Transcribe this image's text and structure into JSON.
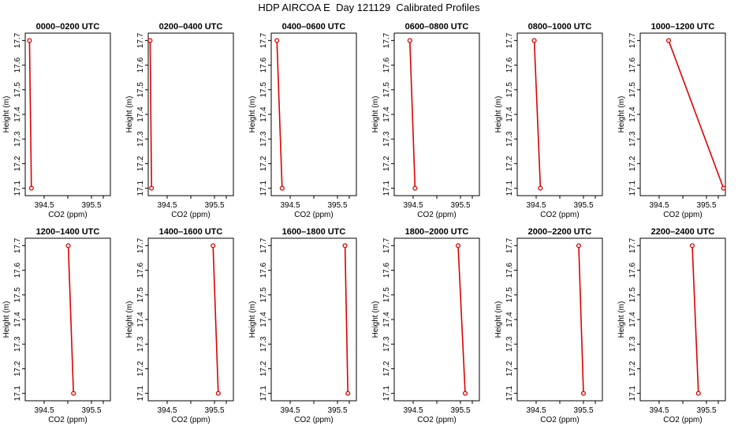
{
  "title": "HDP AIRCOA E  Day 121129  Calibrated Profiles",
  "colors": {
    "series": "#dd0000",
    "axis": "#000000",
    "background": "#ffffff"
  },
  "chart_data": [
    {
      "type": "line",
      "title": "0000–0200 UTC",
      "xlabel": "CO2 (ppm)",
      "ylabel": "Height (m)",
      "xlim": [
        394.1,
        395.9
      ],
      "ylim": [
        17.07,
        17.73
      ],
      "xticks": [
        "394.5",
        "395.5"
      ],
      "yticks": [
        "17.1",
        "17.2",
        "17.3",
        "17.4",
        "17.5",
        "17.6",
        "17.7"
      ],
      "grid": false,
      "points": [
        {
          "x": 394.19,
          "y": 17.7
        },
        {
          "x": 394.23,
          "y": 17.1
        }
      ]
    },
    {
      "type": "line",
      "title": "0200–0400 UTC",
      "xlabel": "CO2 (ppm)",
      "ylabel": "Height (m)",
      "xlim": [
        394.1,
        395.9
      ],
      "ylim": [
        17.07,
        17.73
      ],
      "xticks": [
        "394.5",
        "395.5"
      ],
      "yticks": [
        "17.1",
        "17.2",
        "17.3",
        "17.4",
        "17.5",
        "17.6",
        "17.7"
      ],
      "grid": false,
      "points": [
        {
          "x": 394.14,
          "y": 17.7
        },
        {
          "x": 394.17,
          "y": 17.1
        }
      ]
    },
    {
      "type": "line",
      "title": "0400–0600 UTC",
      "xlabel": "CO2 (ppm)",
      "ylabel": "Height (m)",
      "xlim": [
        394.1,
        395.9
      ],
      "ylim": [
        17.07,
        17.73
      ],
      "xticks": [
        "394.5",
        "395.5"
      ],
      "yticks": [
        "17.1",
        "17.2",
        "17.3",
        "17.4",
        "17.5",
        "17.6",
        "17.7"
      ],
      "grid": false,
      "points": [
        {
          "x": 394.22,
          "y": 17.7
        },
        {
          "x": 394.33,
          "y": 17.1
        }
      ]
    },
    {
      "type": "line",
      "title": "0600–0800 UTC",
      "xlabel": "CO2 (ppm)",
      "ylabel": "Height (m)",
      "xlim": [
        394.1,
        395.9
      ],
      "ylim": [
        17.07,
        17.73
      ],
      "xticks": [
        "394.5",
        "395.5"
      ],
      "yticks": [
        "17.1",
        "17.2",
        "17.3",
        "17.4",
        "17.5",
        "17.6",
        "17.7"
      ],
      "grid": false,
      "points": [
        {
          "x": 394.43,
          "y": 17.7
        },
        {
          "x": 394.54,
          "y": 17.1
        }
      ]
    },
    {
      "type": "line",
      "title": "0800–1000 UTC",
      "xlabel": "CO2 (ppm)",
      "ylabel": "Height (m)",
      "xlim": [
        394.1,
        395.9
      ],
      "ylim": [
        17.07,
        17.73
      ],
      "xticks": [
        "394.5",
        "395.5"
      ],
      "yticks": [
        "17.1",
        "17.2",
        "17.3",
        "17.4",
        "17.5",
        "17.6",
        "17.7"
      ],
      "grid": false,
      "points": [
        {
          "x": 394.46,
          "y": 17.7
        },
        {
          "x": 394.59,
          "y": 17.1
        }
      ]
    },
    {
      "type": "line",
      "title": "1000–1200 UTC",
      "xlabel": "CO2 (ppm)",
      "ylabel": "Height (m)",
      "xlim": [
        394.1,
        395.9
      ],
      "ylim": [
        17.07,
        17.73
      ],
      "xticks": [
        "394.5",
        "395.5"
      ],
      "yticks": [
        "17.1",
        "17.2",
        "17.3",
        "17.4",
        "17.5",
        "17.6",
        "17.7"
      ],
      "grid": false,
      "points": [
        {
          "x": 394.7,
          "y": 17.7
        },
        {
          "x": 395.86,
          "y": 17.1
        }
      ]
    },
    {
      "type": "line",
      "title": "1200–1400 UTC",
      "xlabel": "CO2 (ppm)",
      "ylabel": "Height (m)",
      "xlim": [
        394.1,
        395.9
      ],
      "ylim": [
        17.07,
        17.73
      ],
      "xticks": [
        "394.5",
        "395.5"
      ],
      "yticks": [
        "17.1",
        "17.2",
        "17.3",
        "17.4",
        "17.5",
        "17.6",
        "17.7"
      ],
      "grid": false,
      "points": [
        {
          "x": 395.01,
          "y": 17.7
        },
        {
          "x": 395.12,
          "y": 17.1
        }
      ]
    },
    {
      "type": "line",
      "title": "1400–1600 UTC",
      "xlabel": "CO2 (ppm)",
      "ylabel": "Height (m)",
      "xlim": [
        394.1,
        395.9
      ],
      "ylim": [
        17.07,
        17.73
      ],
      "xticks": [
        "394.5",
        "395.5"
      ],
      "yticks": [
        "17.1",
        "17.2",
        "17.3",
        "17.4",
        "17.5",
        "17.6",
        "17.7"
      ],
      "grid": false,
      "points": [
        {
          "x": 395.47,
          "y": 17.7
        },
        {
          "x": 395.58,
          "y": 17.1
        }
      ]
    },
    {
      "type": "line",
      "title": "1600–1800 UTC",
      "xlabel": "CO2 (ppm)",
      "ylabel": "Height (m)",
      "xlim": [
        394.1,
        395.9
      ],
      "ylim": [
        17.07,
        17.73
      ],
      "xticks": [
        "394.5",
        "395.5"
      ],
      "yticks": [
        "17.1",
        "17.2",
        "17.3",
        "17.4",
        "17.5",
        "17.6",
        "17.7"
      ],
      "grid": false,
      "points": [
        {
          "x": 395.66,
          "y": 17.7
        },
        {
          "x": 395.72,
          "y": 17.1
        }
      ]
    },
    {
      "type": "line",
      "title": "1800–2000 UTC",
      "xlabel": "CO2 (ppm)",
      "ylabel": "Height (m)",
      "xlim": [
        394.1,
        395.9
      ],
      "ylim": [
        17.07,
        17.73
      ],
      "xticks": [
        "394.5",
        "395.5"
      ],
      "yticks": [
        "17.1",
        "17.2",
        "17.3",
        "17.4",
        "17.5",
        "17.6",
        "17.7"
      ],
      "grid": false,
      "points": [
        {
          "x": 395.45,
          "y": 17.7
        },
        {
          "x": 395.6,
          "y": 17.1
        }
      ]
    },
    {
      "type": "line",
      "title": "2000–2200 UTC",
      "xlabel": "CO2 (ppm)",
      "ylabel": "Height (m)",
      "xlim": [
        394.1,
        395.9
      ],
      "ylim": [
        17.07,
        17.73
      ],
      "xticks": [
        "394.5",
        "395.5"
      ],
      "yticks": [
        "17.1",
        "17.2",
        "17.3",
        "17.4",
        "17.5",
        "17.6",
        "17.7"
      ],
      "grid": false,
      "points": [
        {
          "x": 395.4,
          "y": 17.7
        },
        {
          "x": 395.5,
          "y": 17.1
        }
      ]
    },
    {
      "type": "line",
      "title": "2200–2400 UTC",
      "xlabel": "CO2 (ppm)",
      "ylabel": "Height (m)",
      "xlim": [
        394.1,
        395.9
      ],
      "ylim": [
        17.07,
        17.73
      ],
      "xticks": [
        "394.5",
        "395.5"
      ],
      "yticks": [
        "17.1",
        "17.2",
        "17.3",
        "17.4",
        "17.5",
        "17.6",
        "17.7"
      ],
      "grid": false,
      "points": [
        {
          "x": 395.2,
          "y": 17.7
        },
        {
          "x": 395.33,
          "y": 17.1
        }
      ]
    }
  ]
}
